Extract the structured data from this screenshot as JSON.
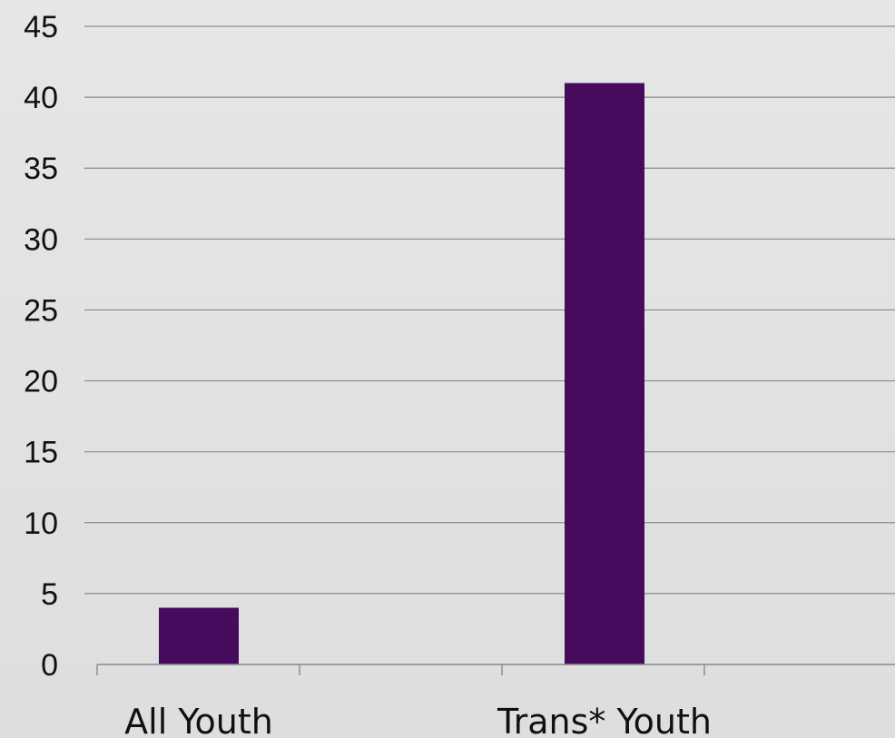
{
  "chart_data": {
    "type": "bar",
    "categories": [
      "All Youth",
      "Trans* Youth"
    ],
    "values": [
      4,
      41
    ],
    "ylim": [
      0,
      45
    ],
    "yticks": [
      0,
      5,
      10,
      15,
      20,
      25,
      30,
      35,
      40,
      45
    ],
    "grid": true,
    "legend": "none",
    "colors": {
      "bar": "#470b5e",
      "grid": "#8a8a8a",
      "axis": "#8a8a8a",
      "text": "#111111",
      "background": "#e2e2e2"
    }
  }
}
